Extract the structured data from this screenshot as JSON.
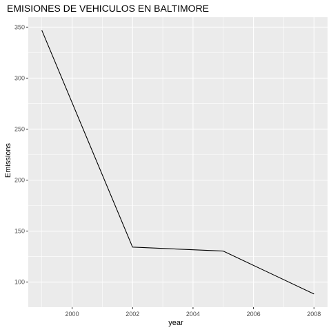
{
  "chart_data": {
    "type": "line",
    "title": "EMISIONES DE VEHICULOS EN BALTIMORE",
    "xlabel": "year",
    "ylabel": "Emissions",
    "x": [
      1999,
      2002,
      2005,
      2008
    ],
    "values": [
      346.8,
      134.3,
      130.4,
      88.3
    ],
    "xlim": [
      1998.55,
      2008.45
    ],
    "ylim": [
      75.4,
      359.7
    ],
    "x_ticks": [
      2000,
      2002,
      2004,
      2006,
      2008
    ],
    "y_ticks": [
      100,
      150,
      200,
      250,
      300,
      350
    ],
    "grid": true,
    "legend": "none",
    "colors": {
      "panel_background": "#EBEBEB",
      "grid_line": "#FFFFFF",
      "line": "#000000",
      "tick_text": "#4D4D4D",
      "label_text": "#000000"
    }
  }
}
